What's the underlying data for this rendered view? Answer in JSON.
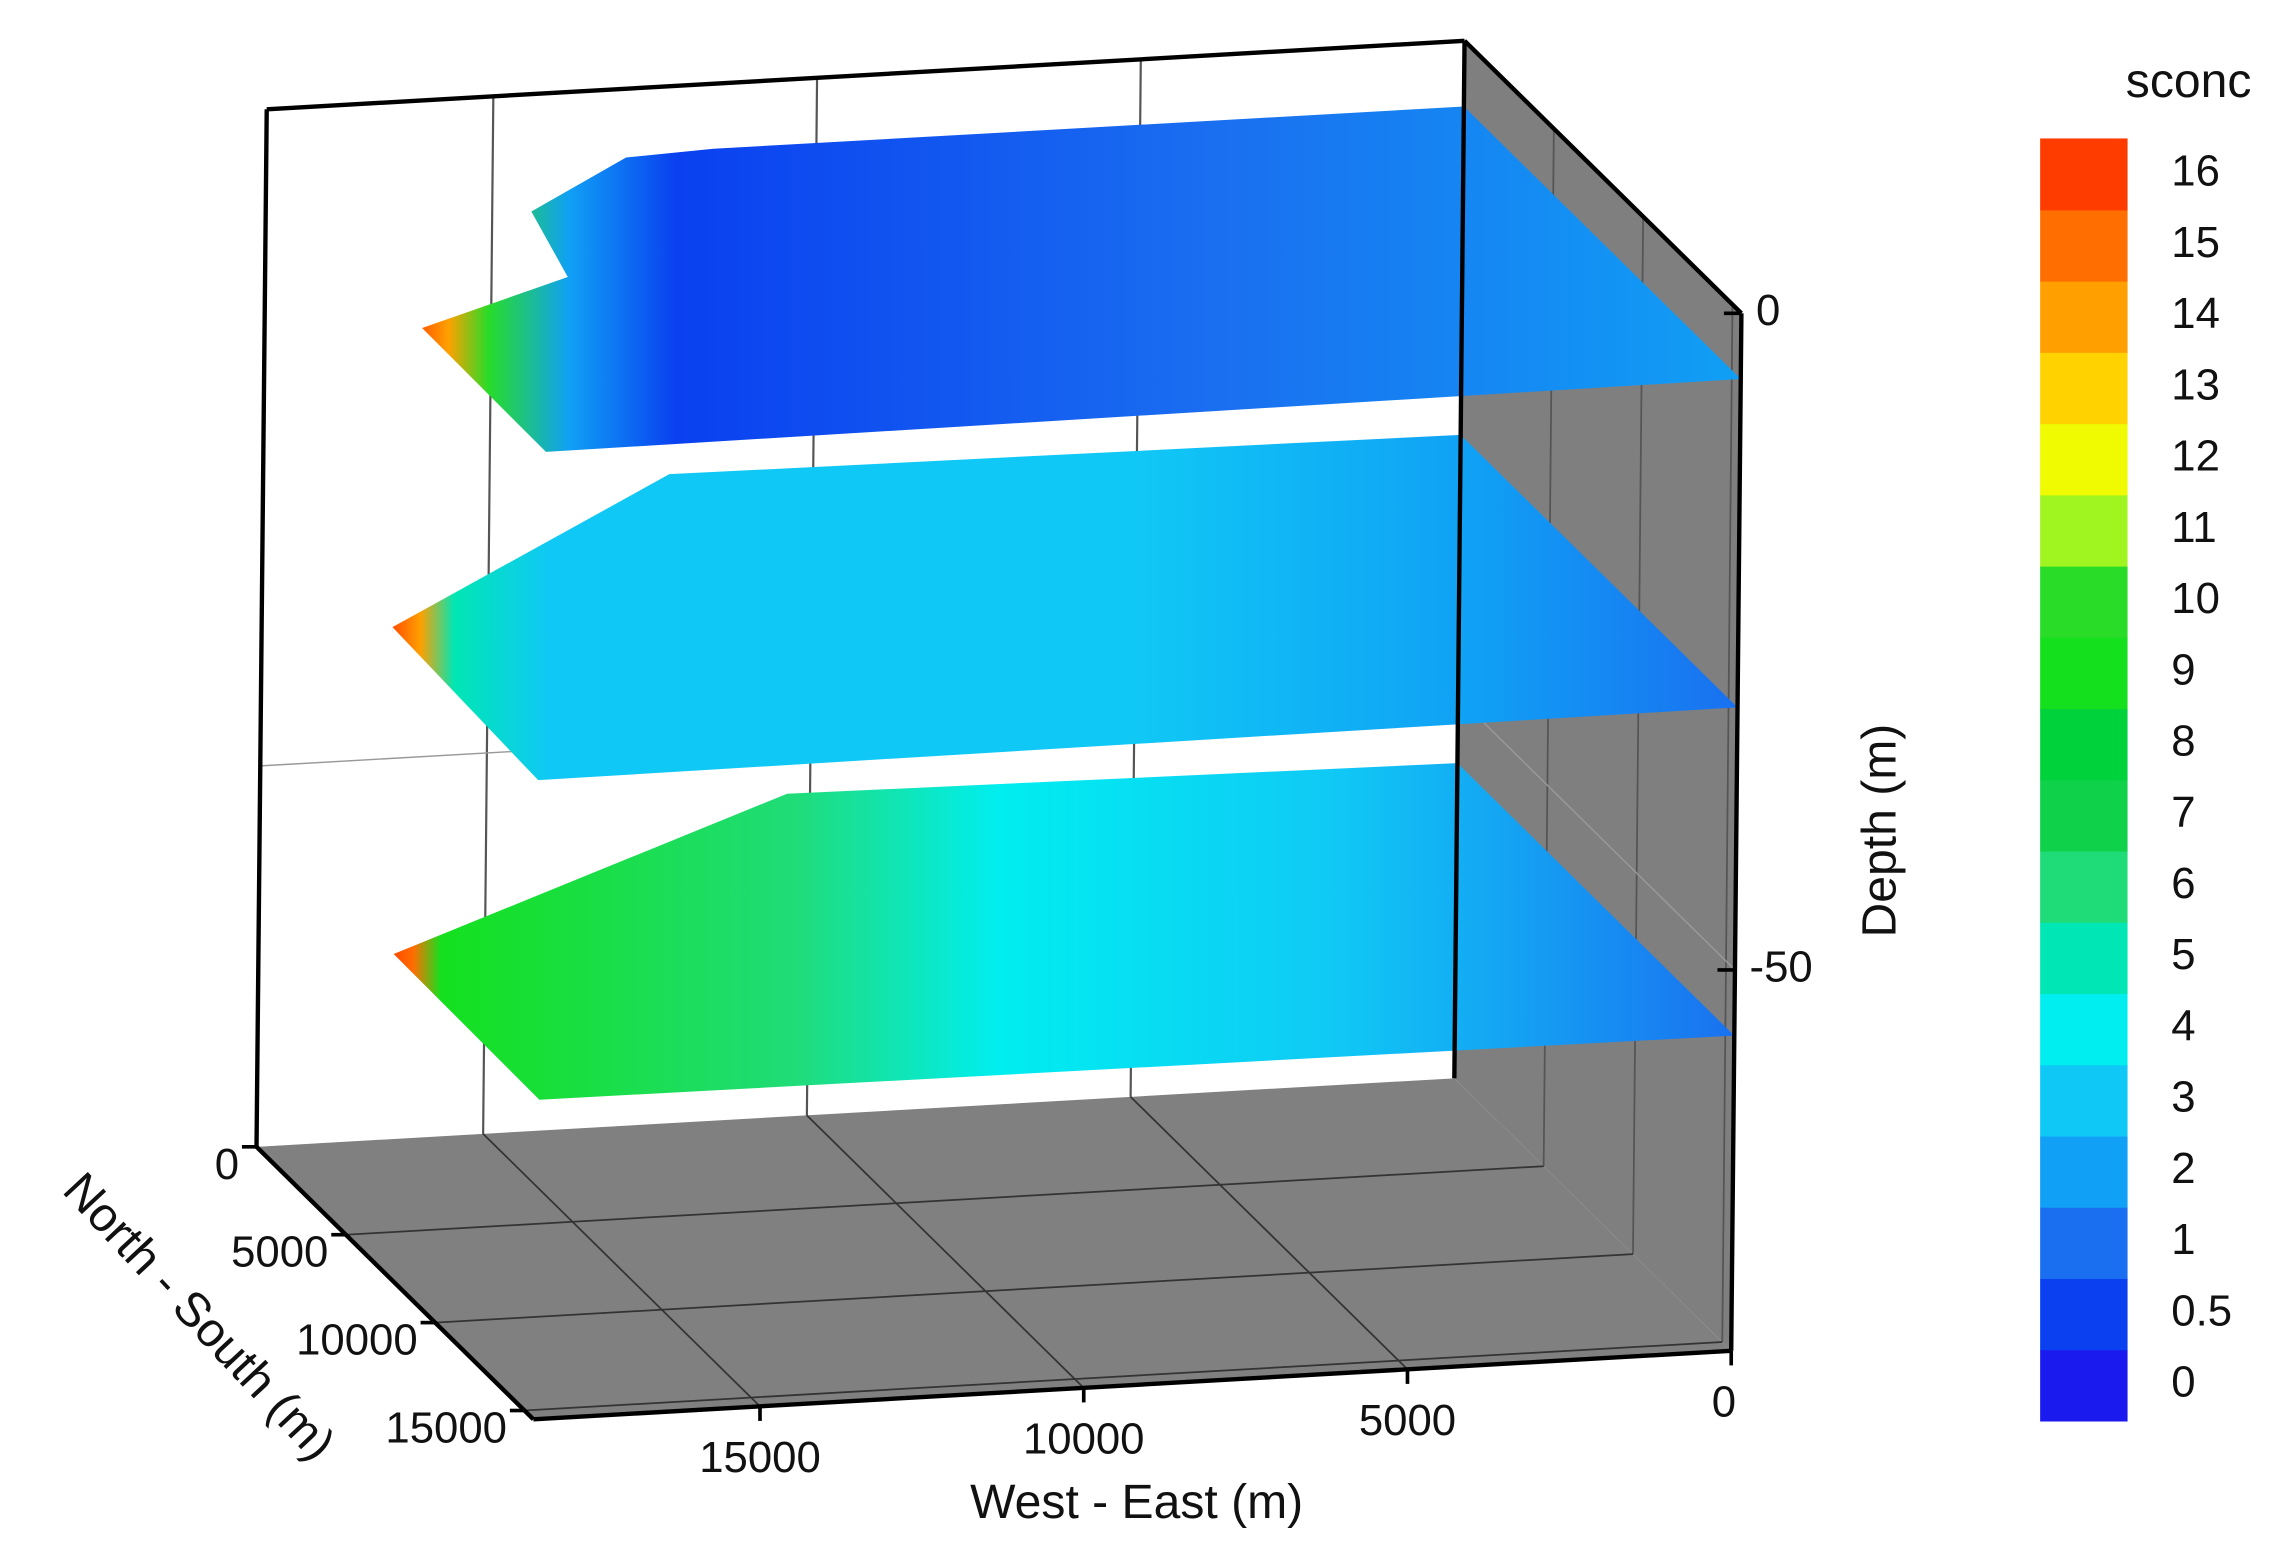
{
  "chart_data": {
    "type": "contour3d",
    "x_label": "West - East (m)",
    "y_label": "North - South (m)",
    "z_label": "Depth (m)",
    "xlim": [
      0,
      18500
    ],
    "xticks": [
      0,
      5000,
      10000,
      15000
    ],
    "ylim": [
      0,
      15500
    ],
    "yticks": [
      0,
      5000,
      10000,
      15000
    ],
    "zlim": [
      -79,
      0
    ],
    "zticks": [
      0,
      -50
    ],
    "slice_depths": [
      -5,
      -30,
      -55
    ],
    "grid": true,
    "colorbar": {
      "title": "sconc",
      "levels": [
        0,
        0.5,
        1,
        2,
        3,
        4,
        5,
        6,
        7,
        8,
        9,
        10,
        11,
        12,
        13,
        14,
        15,
        16
      ],
      "colors": [
        "#1a1aee",
        "#0a40f0",
        "#1a6ef0",
        "#10a0f5",
        "#10c8f5",
        "#00eef0",
        "#00e6b4",
        "#20dc78",
        "#10d24a",
        "#00d23c",
        "#14e01e",
        "#28dc28",
        "#a0f520",
        "#f0fa00",
        "#ffd200",
        "#ffa000",
        "#ff6e00",
        "#ff3c00"
      ]
    }
  }
}
